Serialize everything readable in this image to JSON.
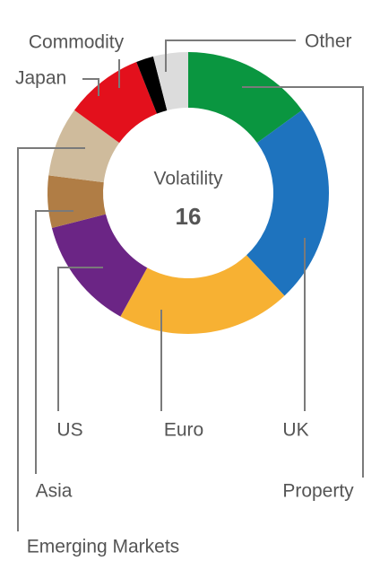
{
  "chart_data": {
    "type": "pie",
    "center_label": "Volatility",
    "center_value": 16,
    "categories": [
      "Property",
      "UK",
      "Euro",
      "US",
      "Asia",
      "Emerging Markets",
      "Japan",
      "Commodity",
      "Other"
    ],
    "values": [
      15,
      23,
      20,
      13,
      6,
      8,
      9,
      2,
      4
    ],
    "colors": [
      "#0a9640",
      "#1e73be",
      "#f7b133",
      "#6b2585",
      "#b07d45",
      "#cfbb9c",
      "#e3101c",
      "#000000",
      "#dcdcdc"
    ]
  }
}
